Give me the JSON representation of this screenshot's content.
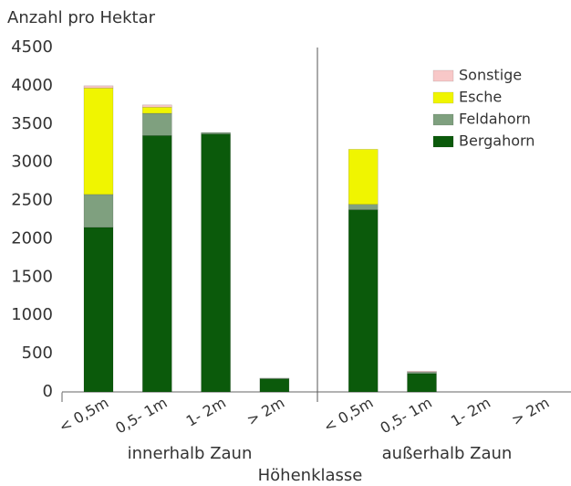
{
  "chart_data": {
    "type": "stacked_bar",
    "y_label": "Anzahl pro Hektar",
    "x_label": "Höhenklasse",
    "groups": [
      "innerhalb Zaun",
      "außerhalb Zaun"
    ],
    "categories": [
      "< 0,5m",
      "0,5- 1m",
      "1- 2m",
      "> 2m",
      "< 0,5m",
      "0,5- 1m",
      "1- 2m",
      "> 2m"
    ],
    "series": [
      {
        "name": "Bergahorn",
        "color": "#0b5a0b",
        "values": [
          2150,
          3350,
          3370,
          170,
          2380,
          240,
          0,
          0
        ]
      },
      {
        "name": "Feldahorn",
        "color": "#7fa07f",
        "values": [
          430,
          290,
          20,
          10,
          70,
          20,
          0,
          0
        ]
      },
      {
        "name": "Esche",
        "color": "#f0f500",
        "values": [
          1390,
          80,
          0,
          0,
          720,
          0,
          0,
          0
        ]
      },
      {
        "name": "Sonstige",
        "color": "#f8c8c8",
        "values": [
          30,
          30,
          0,
          0,
          0,
          10,
          0,
          0
        ]
      }
    ],
    "ylim": [
      0,
      4500
    ],
    "yticks": [
      0,
      500,
      1000,
      1500,
      2000,
      2500,
      3000,
      3500,
      4000,
      4500
    ],
    "legend": "upper right"
  }
}
